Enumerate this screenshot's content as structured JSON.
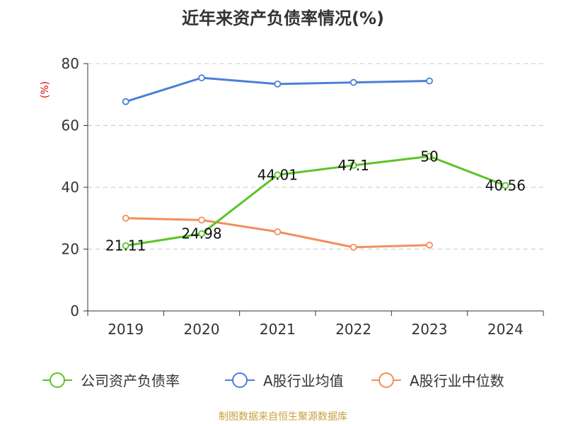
{
  "chart_data": {
    "type": "line",
    "title": "近年来资产负债率情况(%)",
    "ylabel": "(%)",
    "categories": [
      "2019",
      "2020",
      "2021",
      "2022",
      "2023",
      "2024"
    ],
    "ylim": [
      0,
      80
    ],
    "yticks": [
      0,
      20,
      40,
      60,
      80
    ],
    "grid": true,
    "legend_position": "bottom",
    "series": [
      {
        "name": "公司资产负债率",
        "color": "#5bc424",
        "values": [
          21.11,
          24.98,
          44.01,
          47.1,
          50,
          40.56
        ],
        "labels": [
          "21.11",
          "24.98",
          "44.01",
          "47.1",
          "50",
          "40.56"
        ]
      },
      {
        "name": "A股行业均值",
        "color": "#4a7fd8",
        "values": [
          67.7,
          75.4,
          73.4,
          73.9,
          74.4,
          null
        ]
      },
      {
        "name": "A股行业中位数",
        "color": "#f38e5a",
        "values": [
          30.0,
          29.4,
          25.6,
          20.6,
          21.3,
          null
        ]
      }
    ],
    "source": "制图数据来自恒生聚源数据库"
  }
}
